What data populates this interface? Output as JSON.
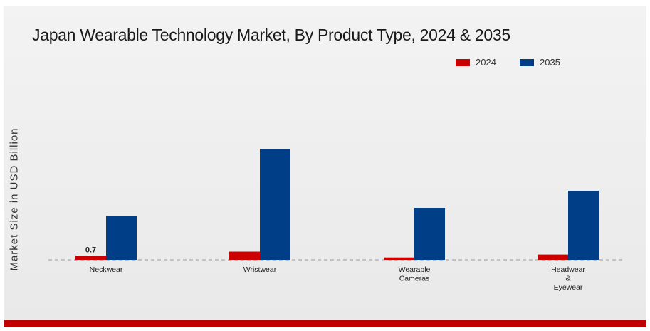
{
  "chart_data": {
    "type": "bar",
    "title": "Japan Wearable Technology Market, By Product Type, 2024 & 2035",
    "ylabel": "Market Size in USD Billion",
    "xlabel": "",
    "categories": [
      [
        "Neckwear"
      ],
      [
        "Wristwear"
      ],
      [
        "Wearable",
        "Cameras"
      ],
      [
        "Headwear",
        "&",
        "Eyewear"
      ]
    ],
    "series": [
      {
        "name": "2024",
        "color": "#cc0000",
        "values": [
          0.7,
          1.4,
          0.4,
          0.9
        ]
      },
      {
        "name": "2035",
        "color": "#003f87",
        "values": [
          7.5,
          19.0,
          8.9,
          11.8
        ]
      }
    ],
    "data_labels": [
      {
        "series": 0,
        "index": 0,
        "text": "0.7"
      }
    ],
    "ylim": [
      0,
      25
    ],
    "grid": false,
    "legend_position": "top-right"
  }
}
